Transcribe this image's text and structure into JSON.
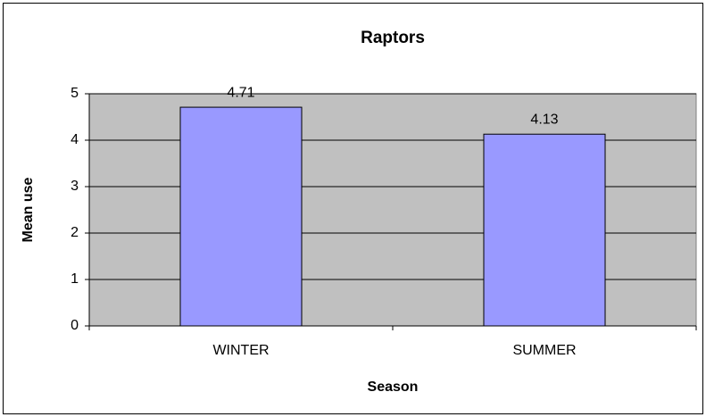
{
  "chart_data": {
    "type": "bar",
    "title": "Raptors",
    "categories": [
      "WINTER",
      "SUMMER"
    ],
    "values": [
      4.71,
      4.13
    ],
    "color": "#9999ff",
    "xlabel": "Season",
    "ylabel": "Mean use",
    "ylim": [
      0,
      5
    ],
    "yticks": [
      0,
      1,
      2,
      3,
      4,
      5
    ],
    "grid": true
  }
}
